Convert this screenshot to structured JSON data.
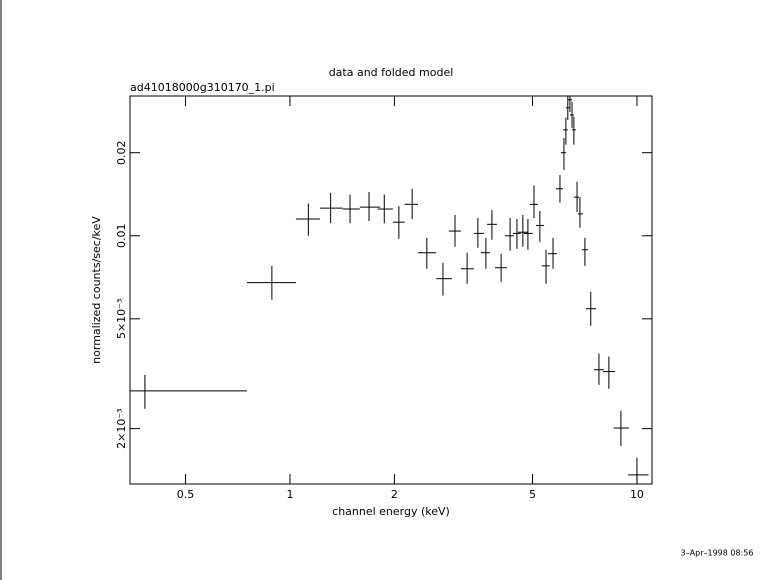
{
  "chart_data": {
    "type": "errorbar",
    "title": "data and folded model",
    "subtitle": "ad41018000g310170_1.pi",
    "x_label": "channel energy (keV)",
    "y_label": "normalized counts/sec/keV",
    "footnote": "3–Apr–1998 08:56",
    "xscale": "log",
    "yscale": "log",
    "color": "#000000",
    "xlim": [
      0.346,
      11.05
    ],
    "ylim": [
      0.00126,
      0.0321
    ],
    "xticks": [
      0.5,
      1,
      2,
      5,
      10
    ],
    "yticks": [
      {
        "value": 0.002,
        "label": "2×10⁻³"
      },
      {
        "value": 0.005,
        "label": "5×10⁻³"
      },
      0.01,
      0.02
    ],
    "x": [
      0.382,
      0.887,
      1.13,
      1.31,
      1.49,
      1.69,
      1.87,
      2.06,
      2.25,
      2.48,
      2.76,
      2.99,
      3.24,
      3.48,
      3.67,
      3.82,
      4.06,
      4.31,
      4.51,
      4.69,
      4.85,
      5.05,
      5.25,
      5.47,
      5.73,
      6.0,
      6.16,
      6.24,
      6.32,
      6.41,
      6.5,
      6.58,
      6.72,
      6.85,
      7.08,
      7.36,
      7.77,
      8.3,
      8.99,
      10.0
    ],
    "x_low": [
      0.346,
      0.752,
      1.04,
      1.22,
      1.42,
      1.59,
      1.79,
      1.98,
      2.14,
      2.34,
      2.64,
      2.87,
      3.11,
      3.39,
      3.55,
      3.7,
      3.9,
      4.17,
      4.39,
      4.54,
      4.72,
      4.92,
      5.12,
      5.32,
      5.54,
      5.84,
      6.04,
      6.12,
      6.24,
      6.32,
      6.41,
      6.5,
      6.58,
      6.76,
      6.94,
      7.13,
      7.52,
      7.98,
      8.58,
      9.42
    ],
    "x_high": [
      0.752,
      1.04,
      1.22,
      1.42,
      1.59,
      1.82,
      1.98,
      2.14,
      2.34,
      2.64,
      2.93,
      3.11,
      3.39,
      3.62,
      3.77,
      3.95,
      4.22,
      4.42,
      4.63,
      4.85,
      5.01,
      5.18,
      5.4,
      5.61,
      5.88,
      6.12,
      6.24,
      6.32,
      6.41,
      6.5,
      6.58,
      6.67,
      6.81,
      6.99,
      7.22,
      7.62,
      8.03,
      8.64,
      9.48,
      10.8
    ],
    "y": [
      0.00274,
      0.00676,
      0.0115,
      0.0126,
      0.0125,
      0.0127,
      0.0125,
      0.0112,
      0.013,
      0.00868,
      0.00699,
      0.0104,
      0.00759,
      0.0102,
      0.00868,
      0.011,
      0.00766,
      0.01,
      0.0102,
      0.0103,
      0.0102,
      0.013,
      0.0109,
      0.00778,
      0.00861,
      0.0148,
      0.02,
      0.0242,
      0.0291,
      0.0311,
      0.0274,
      0.0242,
      0.0138,
      0.012,
      0.0089,
      0.00544,
      0.00327,
      0.00322,
      0.00201,
      0.00136
    ],
    "y_low": [
      0.00236,
      0.00586,
      0.01,
      0.0111,
      0.0111,
      0.0113,
      0.0111,
      0.00975,
      0.0115,
      0.00759,
      0.00607,
      0.00912,
      0.0067,
      0.00905,
      0.00759,
      0.00967,
      0.00681,
      0.00882,
      0.00897,
      0.00912,
      0.0089,
      0.0116,
      0.00951,
      0.0067,
      0.00759,
      0.0132,
      0.0173,
      0.0214,
      0.0263,
      0.0281,
      0.0246,
      0.0214,
      0.0122,
      0.0107,
      0.00778,
      0.00472,
      0.00288,
      0.00279,
      0.00173,
      0.00126
    ],
    "y_high": [
      0.00313,
      0.00778,
      0.0131,
      0.0143,
      0.0141,
      0.0144,
      0.0141,
      0.0128,
      0.0148,
      0.00983,
      0.00798,
      0.0119,
      0.00868,
      0.0116,
      0.00983,
      0.0124,
      0.00861,
      0.0116,
      0.0115,
      0.0119,
      0.0115,
      0.0152,
      0.0123,
      0.0089,
      0.00983,
      0.0166,
      0.0226,
      0.0268,
      0.0321,
      0.0321,
      0.0306,
      0.027,
      0.0157,
      0.0138,
      0.00983,
      0.00627,
      0.00374,
      0.00365,
      0.00232,
      0.00157
    ]
  }
}
